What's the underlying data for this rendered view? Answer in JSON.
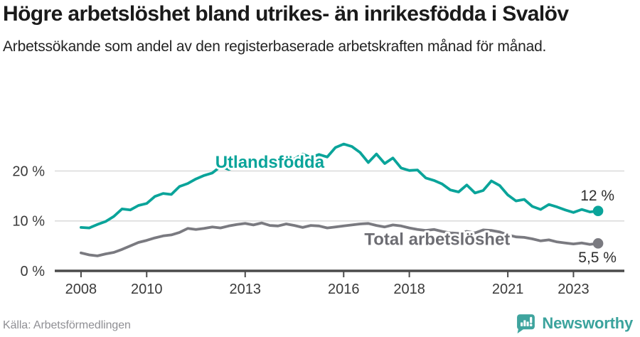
{
  "header": {
    "title": "Högre arbetslöshet bland utrikes- än inrikesfödda i Svalöv",
    "subtitle": "Arbetssökande som andel av den registerbaserade arbetskraften månad för månad."
  },
  "footer": {
    "source": "Källa: Arbetsförmedlingen",
    "brand": "Newsworthy"
  },
  "colors": {
    "accent_teal": "#0aa49a",
    "line_gray": "#7a7a80",
    "series_label_gray": "#6d6d73",
    "axis": "#4b4b4b",
    "grid": "#dadada",
    "tick_text": "#3a3a3a",
    "end_label_text": "#2e2e2e",
    "logo_teal": "#3fa49e",
    "background": "#ffffff"
  },
  "chart_data": {
    "type": "line",
    "title": "Arbetssökande som andel av den registerbaserade arbetskraften, Svalöv",
    "xlabel": "",
    "ylabel": "",
    "xlim": [
      2007.2,
      2024.55
    ],
    "ylim": [
      0,
      27.9
    ],
    "grid": "horizontal",
    "x_tick_years": [
      2008,
      2010,
      2013,
      2016,
      2018,
      2021,
      2023
    ],
    "x_tick_labels": [
      "2008",
      "2010",
      "2013",
      "2016",
      "2018",
      "2021",
      "2023"
    ],
    "y_tick_values": [
      0,
      10,
      20
    ],
    "y_tick_labels": [
      "0 %",
      "10 %",
      "20 %"
    ],
    "x": [
      2008,
      2008.25,
      2008.5,
      2008.75,
      2009,
      2009.25,
      2009.5,
      2009.75,
      2010,
      2010.25,
      2010.5,
      2010.75,
      2011,
      2011.25,
      2011.5,
      2011.75,
      2012,
      2012.25,
      2012.5,
      2012.75,
      2013,
      2013.25,
      2013.5,
      2013.75,
      2014,
      2014.25,
      2014.5,
      2014.75,
      2015,
      2015.25,
      2015.5,
      2015.75,
      2016,
      2016.25,
      2016.5,
      2016.75,
      2017,
      2017.25,
      2017.5,
      2017.75,
      2018,
      2018.25,
      2018.5,
      2018.75,
      2019,
      2019.25,
      2019.5,
      2019.75,
      2020,
      2020.25,
      2020.5,
      2020.75,
      2021,
      2021.25,
      2021.5,
      2021.75,
      2022,
      2022.25,
      2022.5,
      2022.75,
      2023,
      2023.25,
      2023.5,
      2023.75
    ],
    "series": [
      {
        "name": "Utlandsfödda",
        "color": "#0aa49a",
        "end_value": 12,
        "end_label": "12 %",
        "values": [
          8.7,
          8.6,
          9.3,
          9.9,
          10.9,
          12.4,
          12.2,
          13.1,
          13.5,
          14.9,
          15.5,
          15.3,
          16.9,
          17.5,
          18.4,
          19.1,
          19.6,
          20.9,
          20.3,
          21.0,
          21.3,
          21.9,
          21.5,
          20.9,
          21.5,
          22.7,
          22.4,
          23.4,
          22.7,
          23.3,
          22.8,
          24.7,
          25.4,
          24.9,
          23.7,
          21.7,
          23.4,
          21.5,
          22.6,
          20.6,
          20.1,
          20.2,
          18.6,
          18.1,
          17.4,
          16.2,
          15.8,
          17.2,
          15.6,
          16.1,
          18.0,
          17.1,
          15.2,
          14.0,
          14.3,
          12.9,
          12.3,
          13.3,
          12.8,
          12.2,
          11.7,
          12.3,
          11.8,
          12.0
        ]
      },
      {
        "name": "Total arbetslöshet",
        "color": "#7a7a80",
        "end_value": 5.5,
        "end_label": "5,5 %",
        "values": [
          3.6,
          3.2,
          3.0,
          3.4,
          3.7,
          4.3,
          5.0,
          5.7,
          6.1,
          6.6,
          7.0,
          7.2,
          7.7,
          8.5,
          8.3,
          8.5,
          8.8,
          8.6,
          9.0,
          9.3,
          9.5,
          9.2,
          9.6,
          9.1,
          9.0,
          9.4,
          9.1,
          8.7,
          9.1,
          9.0,
          8.6,
          8.8,
          9.0,
          9.2,
          9.4,
          9.5,
          9.1,
          8.8,
          9.2,
          9.0,
          8.6,
          8.3,
          8.1,
          8.3,
          7.9,
          7.6,
          7.5,
          7.9,
          7.6,
          8.2,
          8.1,
          7.8,
          7.2,
          6.8,
          6.7,
          6.4,
          6.0,
          6.2,
          5.8,
          5.6,
          5.4,
          5.6,
          5.3,
          5.5
        ]
      }
    ],
    "series_labels": [
      {
        "text": "Utlandsfödda",
        "x": 2013.75,
        "y": 21.8,
        "color": "#0aa49a"
      },
      {
        "text": "Total arbetslöshet",
        "x": 2018.85,
        "y": 6.3,
        "color": "#6d6d73"
      }
    ],
    "end_labels": [
      {
        "text": "12 %",
        "x": 2023.73,
        "y": 15.1
      },
      {
        "text": "5,5 %",
        "x": 2023.73,
        "y": 2.7
      }
    ],
    "legend_position": "inline-labels"
  }
}
